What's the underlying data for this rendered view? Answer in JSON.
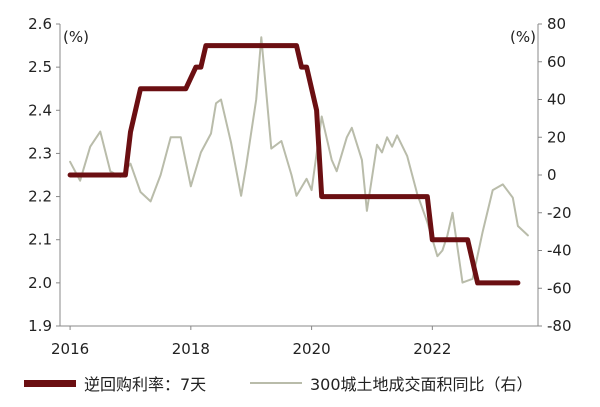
{
  "chart_data": {
    "type": "line",
    "x_ticks": [
      "2016",
      "2018",
      "2020",
      "2022"
    ],
    "left_axis": {
      "unit": "(%)",
      "ylim": [
        1.9,
        2.6
      ],
      "ticks": [
        "1.9",
        "2.0",
        "2.1",
        "2.2",
        "2.3",
        "2.4",
        "2.5",
        "2.6"
      ]
    },
    "right_axis": {
      "unit": "(%)",
      "ylim": [
        -80,
        80
      ],
      "ticks": [
        "-80",
        "-60",
        "-40",
        "-20",
        "0",
        "20",
        "40",
        "60",
        "80"
      ]
    },
    "grid": false,
    "legend_position": "bottom",
    "series": [
      {
        "name": "逆回购利率：7天",
        "axis": "left",
        "color": "#6b0f12",
        "points": [
          [
            "2016-01",
            2.25
          ],
          [
            "2016-06",
            2.25
          ],
          [
            "2016-12",
            2.25
          ],
          [
            "2017-01",
            2.35
          ],
          [
            "2017-02",
            2.4
          ],
          [
            "2017-03",
            2.45
          ],
          [
            "2017-06",
            2.45
          ],
          [
            "2017-12",
            2.45
          ],
          [
            "2018-02",
            2.5
          ],
          [
            "2018-03",
            2.5
          ],
          [
            "2018-04",
            2.55
          ],
          [
            "2018-12",
            2.55
          ],
          [
            "2019-06",
            2.55
          ],
          [
            "2019-10",
            2.55
          ],
          [
            "2019-11",
            2.5
          ],
          [
            "2019-12",
            2.5
          ],
          [
            "2020-02",
            2.4
          ],
          [
            "2020-03",
            2.2
          ],
          [
            "2020-12",
            2.2
          ],
          [
            "2021-06",
            2.2
          ],
          [
            "2021-12",
            2.2
          ],
          [
            "2022-01",
            2.1
          ],
          [
            "2022-06",
            2.1
          ],
          [
            "2022-08",
            2.1
          ],
          [
            "2022-10",
            2.0
          ],
          [
            "2023-06",
            2.0
          ]
        ]
      },
      {
        "name": "300城土地成交面积同比（右）",
        "axis": "right",
        "color": "#b9bcaa",
        "points": [
          [
            "2016-01",
            7
          ],
          [
            "2016-03",
            -3
          ],
          [
            "2016-05",
            15
          ],
          [
            "2016-07",
            23
          ],
          [
            "2016-09",
            2
          ],
          [
            "2016-11",
            -1
          ],
          [
            "2017-01",
            6
          ],
          [
            "2017-03",
            -9
          ],
          [
            "2017-05",
            -14
          ],
          [
            "2017-07",
            0
          ],
          [
            "2017-09",
            20
          ],
          [
            "2017-11",
            20
          ],
          [
            "2018-01",
            -6
          ],
          [
            "2018-03",
            12
          ],
          [
            "2018-05",
            22
          ],
          [
            "2018-06",
            38
          ],
          [
            "2018-07",
            40
          ],
          [
            "2018-09",
            17
          ],
          [
            "2018-11",
            -11
          ],
          [
            "2018-12",
            5
          ],
          [
            "2019-02",
            40
          ],
          [
            "2019-03",
            73
          ],
          [
            "2019-05",
            14
          ],
          [
            "2019-07",
            18
          ],
          [
            "2019-09",
            0
          ],
          [
            "2019-10",
            -11
          ],
          [
            "2019-12",
            -2
          ],
          [
            "2020-01",
            -8
          ],
          [
            "2020-03",
            31
          ],
          [
            "2020-05",
            8
          ],
          [
            "2020-06",
            2
          ],
          [
            "2020-08",
            20
          ],
          [
            "2020-09",
            25
          ],
          [
            "2020-11",
            8
          ],
          [
            "2020-12",
            -19
          ],
          [
            "2021-02",
            16
          ],
          [
            "2021-03",
            12
          ],
          [
            "2021-04",
            20
          ],
          [
            "2021-05",
            15
          ],
          [
            "2021-06",
            21
          ],
          [
            "2021-08",
            10
          ],
          [
            "2021-10",
            -10
          ],
          [
            "2021-12",
            -25
          ],
          [
            "2022-02",
            -43
          ],
          [
            "2022-03",
            -40
          ],
          [
            "2022-04",
            -32
          ],
          [
            "2022-05",
            -20
          ],
          [
            "2022-07",
            -57
          ],
          [
            "2022-09",
            -55
          ],
          [
            "2022-11",
            -30
          ],
          [
            "2023-01",
            -8
          ],
          [
            "2023-03",
            -5
          ],
          [
            "2023-05",
            -12
          ],
          [
            "2023-06",
            -27
          ],
          [
            "2023-08",
            -32
          ]
        ]
      }
    ]
  }
}
